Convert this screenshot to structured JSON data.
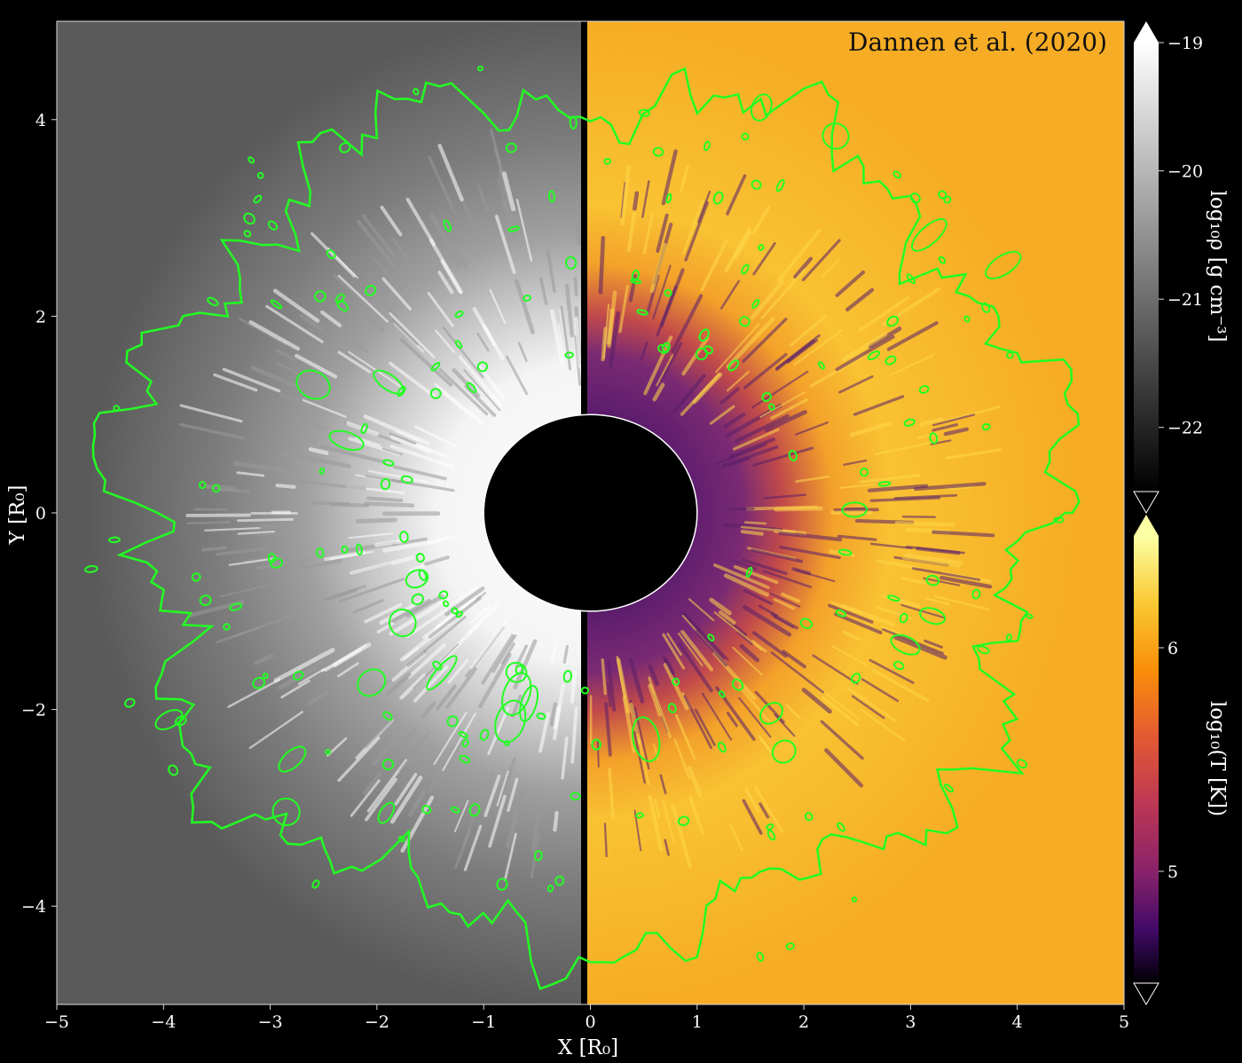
{
  "chart_data": {
    "type": "heatmap",
    "annotation": "Dannen et al. (2020)",
    "xlabel": "X [R₀]",
    "ylabel": "Y [R₀]",
    "xlim": [
      -5,
      5
    ],
    "ylim": [
      -5,
      5
    ],
    "x_ticks": [
      "−5",
      "−4",
      "−3",
      "−2",
      "−1",
      "0",
      "1",
      "2",
      "3",
      "4",
      "5"
    ],
    "y_ticks": [
      "−4",
      "−2",
      "0",
      "2",
      "4"
    ],
    "panels": [
      {
        "side": "left",
        "quantity": "log10 density",
        "colormap": "gray"
      },
      {
        "side": "right",
        "quantity": "log10 temperature",
        "colormap": "inferno"
      }
    ],
    "inner_boundary_radius": 1,
    "contour_color": "#22ff22",
    "contour_radius_approx": 4.3,
    "colorbars": [
      {
        "label": "log₁₀ρ [g cm⁻³]",
        "ticks": [
          "−19",
          "−20",
          "−21",
          "−22"
        ],
        "tick_values": [
          -19,
          -20,
          -21,
          -22
        ],
        "range": [
          -22.5,
          -19
        ],
        "colormap": "gray"
      },
      {
        "label": "log₁₀(T [K])",
        "ticks": [
          "6",
          "5"
        ],
        "tick_values": [
          6,
          5
        ],
        "range": [
          4.5,
          6.5
        ],
        "colormap": "inferno"
      }
    ]
  }
}
